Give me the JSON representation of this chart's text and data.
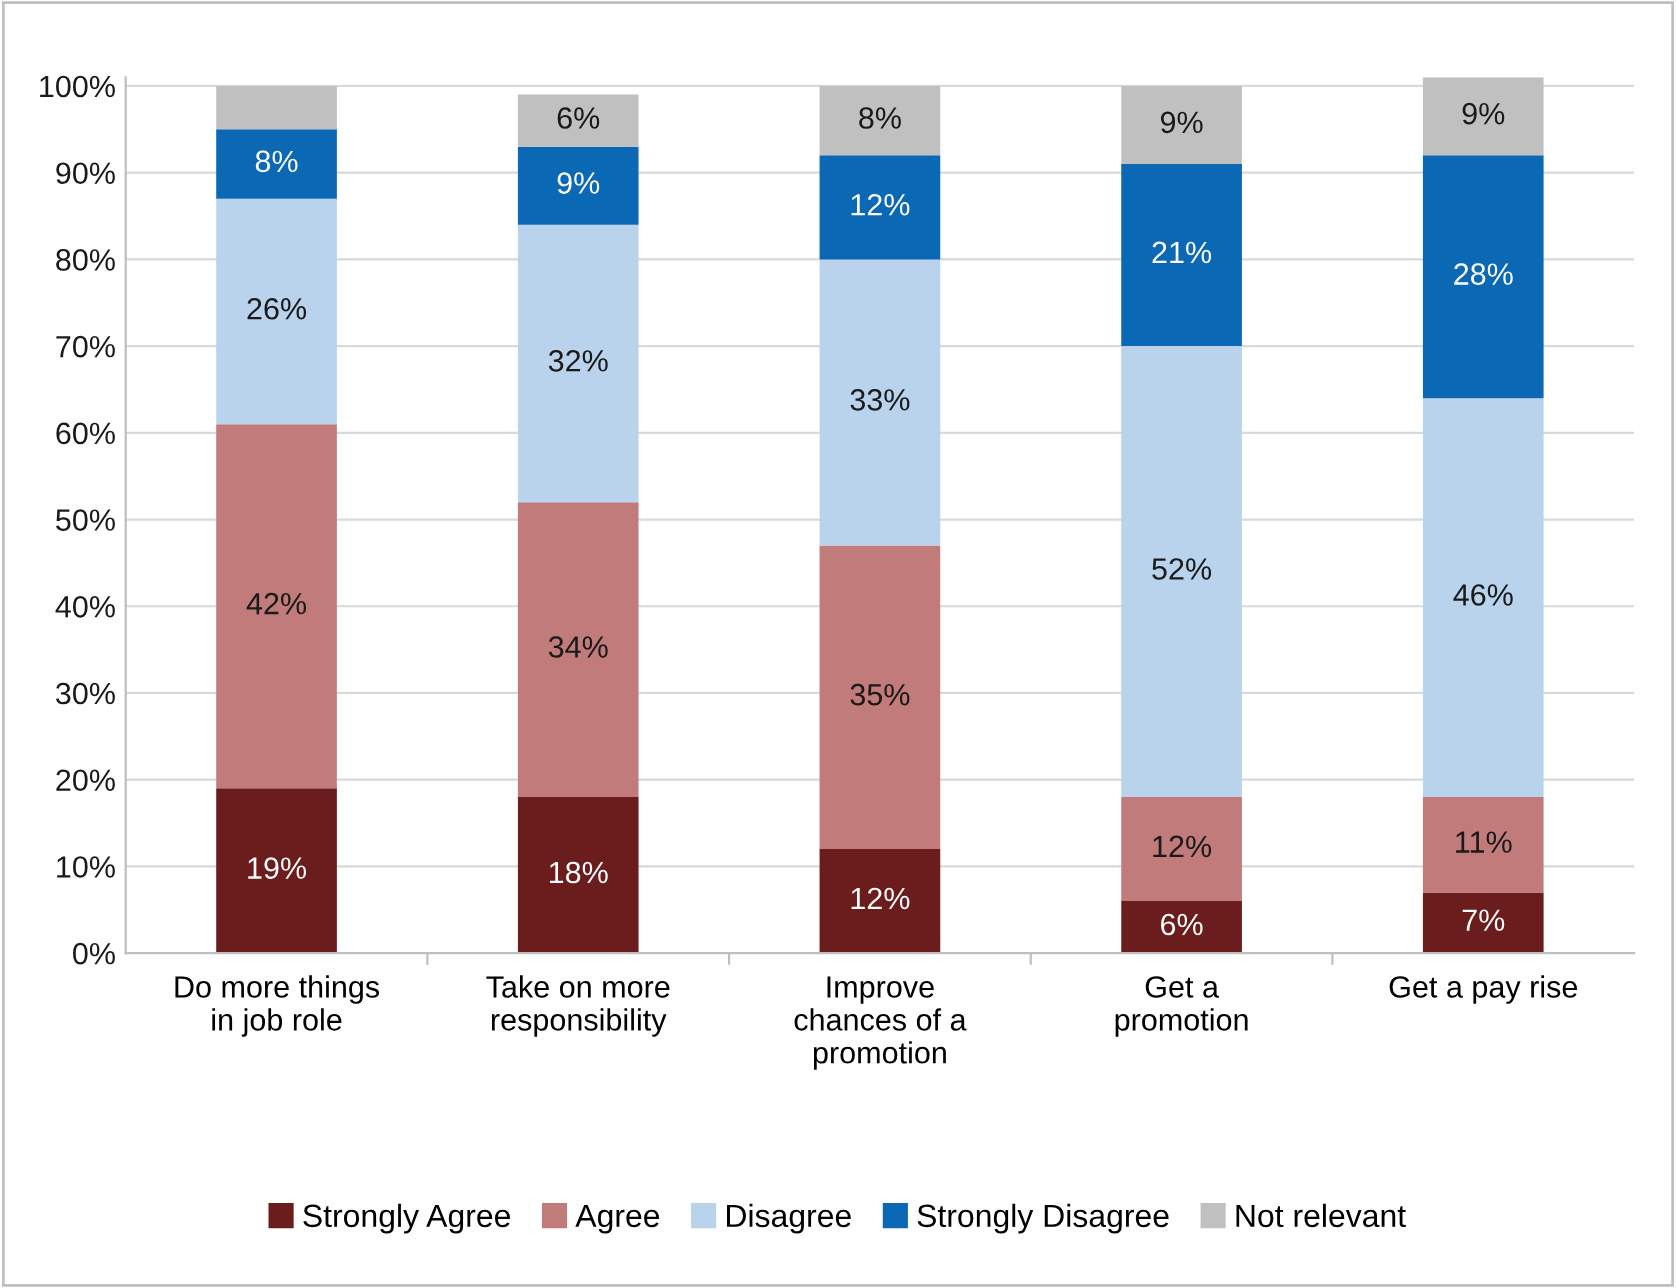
{
  "chart_data": {
    "type": "bar",
    "stacked": true,
    "categories": [
      "Do more things\nin job role",
      "Take on more\nresponsibility",
      "Improve\nchances of a\npromotion",
      "Get a\npromotion",
      "Get a pay rise"
    ],
    "series": [
      {
        "name": "Strongly Agree",
        "color": "#6b1c1c",
        "values": [
          19,
          18,
          12,
          6,
          7
        ],
        "value_labels": [
          "19%",
          "18%",
          "12%",
          "6%",
          "7%"
        ]
      },
      {
        "name": "Agree",
        "color": "#c27b7b",
        "values": [
          42,
          34,
          35,
          12,
          11
        ],
        "value_labels": [
          "42%",
          "34%",
          "35%",
          "12%",
          "11%"
        ]
      },
      {
        "name": "Disagree",
        "color": "#b9d3ec",
        "values": [
          26,
          32,
          33,
          52,
          46
        ],
        "value_labels": [
          "26%",
          "32%",
          "33%",
          "52%",
          "46%"
        ]
      },
      {
        "name": "Strongly Disagree",
        "color": "#0b68b4",
        "values": [
          8,
          9,
          12,
          21,
          28
        ],
        "value_labels": [
          "8%",
          "9%",
          "12%",
          "21%",
          "28%"
        ]
      },
      {
        "name": "Not relevant",
        "color": "#c0c0c0",
        "values": [
          5,
          6,
          8,
          9,
          9
        ],
        "value_labels": [
          null,
          "6%",
          "8%",
          "9%",
          "9%"
        ]
      }
    ],
    "ylim": [
      0,
      101
    ],
    "yticks": [
      {
        "value": 0,
        "label": "0%"
      },
      {
        "value": 10,
        "label": "10%"
      },
      {
        "value": 20,
        "label": "20%"
      },
      {
        "value": 30,
        "label": "30%"
      },
      {
        "value": 40,
        "label": "40%"
      },
      {
        "value": 50,
        "label": "50%"
      },
      {
        "value": 60,
        "label": "60%"
      },
      {
        "value": 70,
        "label": "70%"
      },
      {
        "value": 80,
        "label": "80%"
      },
      {
        "value": 90,
        "label": "90%"
      },
      {
        "value": 100,
        "label": "100%"
      }
    ],
    "grid": "y",
    "legend": "bottom"
  }
}
